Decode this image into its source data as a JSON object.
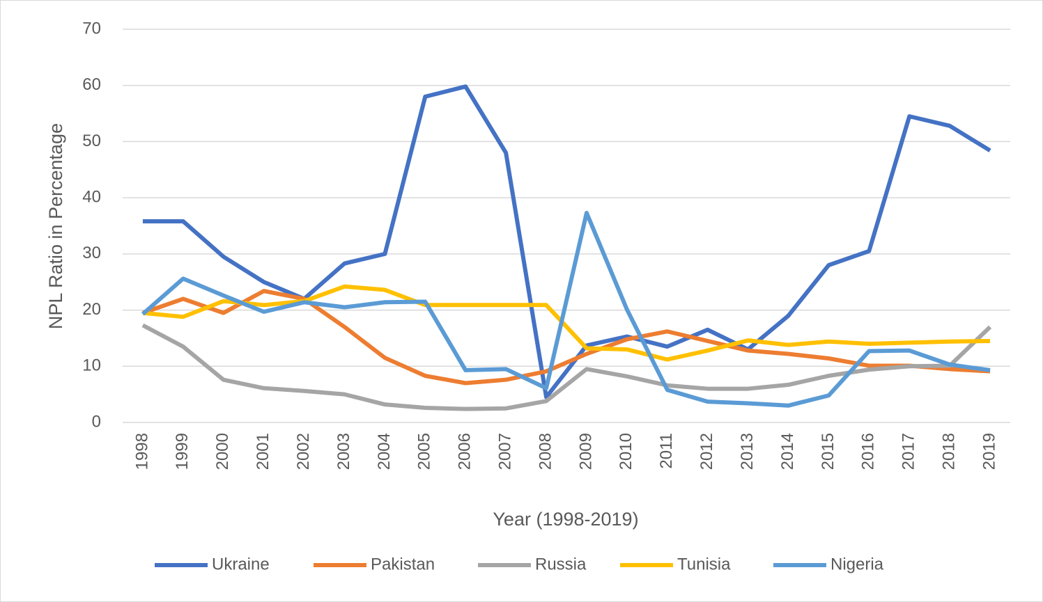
{
  "chart_data": {
    "type": "line",
    "x_label": "Year (1998-2019)",
    "y_label": "NPL Ratio in Percentage",
    "categories": [
      "1998",
      "1999",
      "2000",
      "2001",
      "2002",
      "2003",
      "2004",
      "2005",
      "2006",
      "2007",
      "2008",
      "2009",
      "2010",
      "2011",
      "2012",
      "2013",
      "2014",
      "2015",
      "2016",
      "2017",
      "2018",
      "2019"
    ],
    "series": [
      {
        "name": "Ukraine",
        "color": "#4472c4",
        "values": [
          35.8,
          35.8,
          29.5,
          25,
          22,
          28.3,
          30,
          58,
          59.8,
          48,
          4.5,
          13.7,
          15.3,
          13.5,
          16.5,
          13,
          19,
          28,
          30.5,
          54.5,
          52.8,
          48.4
        ]
      },
      {
        "name": "Pakistan",
        "color": "#ed7d31",
        "values": [
          19.5,
          22,
          19.5,
          23.4,
          22,
          17,
          11.5,
          8.3,
          7,
          7.6,
          9.1,
          12.2,
          14.8,
          16.2,
          14.5,
          12.8,
          12.2,
          11.4,
          10.1,
          10.1,
          9.5,
          9.1
        ]
      },
      {
        "name": "Russia",
        "color": "#a5a5a5",
        "values": [
          17.3,
          13.5,
          7.6,
          6.1,
          5.6,
          5,
          3.2,
          2.6,
          2.4,
          2.5,
          3.8,
          9.5,
          8.2,
          6.6,
          6,
          6,
          6.7,
          8.3,
          9.4,
          10,
          10.1,
          17
        ]
      },
      {
        "name": "Tunisia",
        "color": "#ffc000",
        "values": [
          19.5,
          18.8,
          21.6,
          20.9,
          21.6,
          24.2,
          23.6,
          20.9,
          20.9,
          20.9,
          20.9,
          13.2,
          13,
          11.2,
          12.8,
          14.6,
          13.8,
          14.4,
          14,
          14.2,
          14.4,
          14.5
        ]
      },
      {
        "name": "Nigeria",
        "color": "#5b9bd5",
        "values": [
          19.3,
          25.6,
          22.6,
          19.7,
          21.4,
          20.5,
          21.4,
          21.5,
          9.3,
          9.5,
          6.1,
          37.3,
          20.1,
          5.8,
          3.7,
          3.4,
          3,
          4.8,
          12.7,
          12.8,
          10.3,
          9.3
        ]
      }
    ],
    "ylim": [
      0,
      70
    ],
    "yticks": [
      0,
      10,
      20,
      30,
      40,
      50,
      60,
      70
    ],
    "grid": true,
    "legend": "bottom"
  }
}
